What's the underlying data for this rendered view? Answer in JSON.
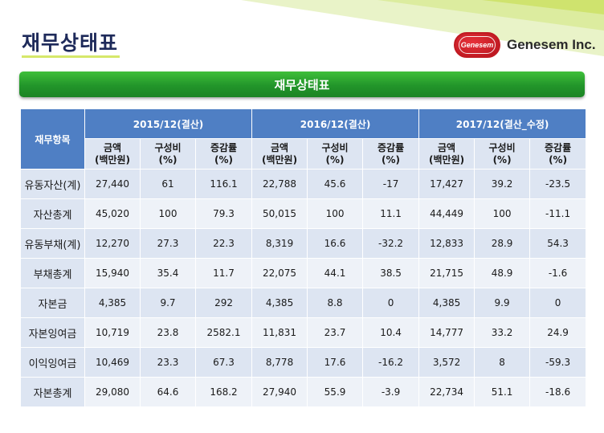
{
  "page": {
    "title": "재무상태표",
    "banner": "재무상태표",
    "logo_mark": "Genesem",
    "logo_text": "Genesem Inc."
  },
  "table": {
    "corner": "재무항목",
    "periods": [
      "2015/12(결산)",
      "2016/12(결산)",
      "2017/12(결산_수정)"
    ],
    "subheaders": [
      {
        "l1": "금액",
        "l2": "(백만원)"
      },
      {
        "l1": "구성비",
        "l2": "(%)"
      },
      {
        "l1": "증감률",
        "l2": "(%)"
      }
    ],
    "rows": [
      {
        "label": "유동자산(계)",
        "values": [
          "27,440",
          "61",
          "116.1",
          "22,788",
          "45.6",
          "-17",
          "17,427",
          "39.2",
          "-23.5"
        ]
      },
      {
        "label": "자산총계",
        "values": [
          "45,020",
          "100",
          "79.3",
          "50,015",
          "100",
          "11.1",
          "44,449",
          "100",
          "-11.1"
        ]
      },
      {
        "label": "유동부채(계)",
        "values": [
          "12,270",
          "27.3",
          "22.3",
          "8,319",
          "16.6",
          "-32.2",
          "12,833",
          "28.9",
          "54.3"
        ]
      },
      {
        "label": "부채총계",
        "values": [
          "15,940",
          "35.4",
          "11.7",
          "22,075",
          "44.1",
          "38.5",
          "21,715",
          "48.9",
          "-1.6"
        ]
      },
      {
        "label": "자본금",
        "values": [
          "4,385",
          "9.7",
          "292",
          "4,385",
          "8.8",
          "0",
          "4,385",
          "9.9",
          "0"
        ]
      },
      {
        "label": "자본잉여금",
        "values": [
          "10,719",
          "23.8",
          "2582.1",
          "11,831",
          "23.7",
          "10.4",
          "14,777",
          "33.2",
          "24.9"
        ]
      },
      {
        "label": "이익잉여금",
        "values": [
          "10,469",
          "23.3",
          "67.3",
          "8,778",
          "17.6",
          "-16.2",
          "3,572",
          "8",
          "-59.3"
        ]
      },
      {
        "label": "자본총계",
        "values": [
          "29,080",
          "64.6",
          "168.2",
          "27,940",
          "55.9",
          "-3.9",
          "22,734",
          "51.1",
          "-18.6"
        ]
      }
    ]
  },
  "colors": {
    "header_blue": "#4f7fc4",
    "banner_green": "#22952a",
    "row_light": "#dde5f2",
    "row_lighter": "#eef2f8",
    "accent_lime": "#d6e86a"
  }
}
